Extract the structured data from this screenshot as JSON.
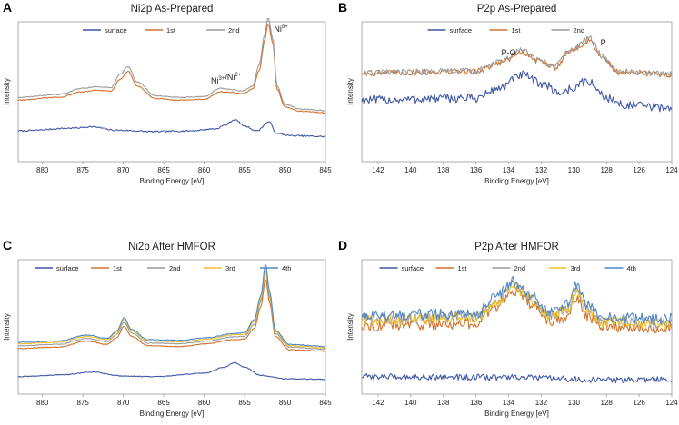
{
  "colors": {
    "surface": "#3f57a6",
    "1st": "#d0712b",
    "2nd": "#9a9a9a",
    "3rd": "#efc02a",
    "4th": "#4f86c6",
    "axis": "#9a9a9a",
    "text": "#222222"
  },
  "chart_data": [
    {
      "panel": "A",
      "type": "line",
      "title": "Ni2p As-Prepared",
      "xlabel": "Binding Energy [eV]",
      "ylabel": "Intensity",
      "xlim": [
        883,
        845
      ],
      "ylim": [
        0,
        10
      ],
      "xticks": [
        880,
        875,
        870,
        865,
        860,
        855,
        850,
        845
      ],
      "legend": [
        "surface",
        "1st",
        "2nd"
      ],
      "annotations": [
        {
          "text": "Ni",
          "sup": "δ+",
          "x": 850.5,
          "y": 9.3
        },
        {
          "text": "Ni",
          "sup": "3+",
          "rest": "/Ni",
          "sup2": "2+",
          "x": 857.3,
          "y": 5.6
        }
      ],
      "series": [
        {
          "name": "surface",
          "noise": 0.05,
          "points": [
            [
              883,
              2.2
            ],
            [
              876,
              2.4
            ],
            [
              874,
              2.5
            ],
            [
              871,
              2.25
            ],
            [
              866,
              2.15
            ],
            [
              862,
              2.2
            ],
            [
              858.5,
              2.35
            ],
            [
              857.5,
              2.6
            ],
            [
              856.2,
              3.0
            ],
            [
              855,
              2.55
            ],
            [
              853.5,
              2.2
            ],
            [
              852,
              2.85
            ],
            [
              851,
              2.0
            ],
            [
              849,
              1.85
            ],
            [
              845,
              1.8
            ]
          ]
        },
        {
          "name": "1st",
          "noise": 0.03,
          "points": [
            [
              883,
              4.4
            ],
            [
              878,
              4.6
            ],
            [
              875,
              5.0
            ],
            [
              873.5,
              5.1
            ],
            [
              871.5,
              5.05
            ],
            [
              870.4,
              5.9
            ],
            [
              869.4,
              6.45
            ],
            [
              868.3,
              5.4
            ],
            [
              866,
              4.5
            ],
            [
              863,
              4.4
            ],
            [
              860,
              4.45
            ],
            [
              858,
              5.0
            ],
            [
              856.6,
              4.95
            ],
            [
              855.2,
              4.85
            ],
            [
              854,
              5.2
            ],
            [
              853.2,
              6.5
            ],
            [
              852.5,
              8.7
            ],
            [
              852.1,
              9.9
            ],
            [
              851.5,
              8.5
            ],
            [
              851,
              5.2
            ],
            [
              850,
              3.9
            ],
            [
              848,
              3.6
            ],
            [
              845,
              3.5
            ]
          ]
        },
        {
          "name": "2nd",
          "noise": 0.03,
          "points": [
            [
              883,
              4.6
            ],
            [
              878,
              4.8
            ],
            [
              875,
              5.25
            ],
            [
              873.5,
              5.35
            ],
            [
              871.5,
              5.3
            ],
            [
              870.4,
              6.25
            ],
            [
              869.4,
              6.8
            ],
            [
              868.3,
              5.7
            ],
            [
              866,
              4.7
            ],
            [
              863,
              4.6
            ],
            [
              860,
              4.65
            ],
            [
              858,
              5.25
            ],
            [
              856.6,
              5.15
            ],
            [
              855.2,
              5.05
            ],
            [
              854,
              5.4
            ],
            [
              853.2,
              6.9
            ],
            [
              852.5,
              9.1
            ],
            [
              852.1,
              10.3
            ],
            [
              851.5,
              8.8
            ],
            [
              851,
              5.4
            ],
            [
              850,
              4.1
            ],
            [
              848,
              3.75
            ],
            [
              845,
              3.65
            ]
          ]
        }
      ]
    },
    {
      "panel": "B",
      "type": "line",
      "title": "P2p As-Prepared",
      "xlabel": "Binding Energy [eV]",
      "ylabel": "Intensity",
      "xlim": [
        143,
        124
      ],
      "ylim": [
        0,
        10
      ],
      "xticks": [
        142,
        140,
        138,
        136,
        134,
        132,
        130,
        128,
        126,
        124
      ],
      "legend": [
        "surface",
        "1st",
        "2nd"
      ],
      "annotations": [
        {
          "text": "P-O",
          "x": 134.0,
          "y": 7.6
        },
        {
          "text": "P",
          "x": 128.2,
          "y": 8.3
        }
      ],
      "series": [
        {
          "name": "surface",
          "noise": 0.32,
          "points": [
            [
              143,
              4.4
            ],
            [
              136,
              4.55
            ],
            [
              134.5,
              5.3
            ],
            [
              133.2,
              6.2
            ],
            [
              132,
              5.6
            ],
            [
              130.8,
              4.9
            ],
            [
              130.2,
              5.2
            ],
            [
              129.2,
              5.75
            ],
            [
              128,
              4.6
            ],
            [
              127,
              4.05
            ],
            [
              124,
              3.85
            ]
          ]
        },
        {
          "name": "1st",
          "noise": 0.22,
          "points": [
            [
              143,
              6.3
            ],
            [
              136,
              6.45
            ],
            [
              134.5,
              7.1
            ],
            [
              133.2,
              7.8
            ],
            [
              132.2,
              7.2
            ],
            [
              131.2,
              6.75
            ],
            [
              130.2,
              7.9
            ],
            [
              129,
              8.65
            ],
            [
              128.3,
              7.5
            ],
            [
              127.3,
              6.4
            ],
            [
              124,
              6.2
            ]
          ]
        },
        {
          "name": "2nd",
          "noise": 0.22,
          "points": [
            [
              143,
              6.35
            ],
            [
              136,
              6.5
            ],
            [
              134.5,
              7.15
            ],
            [
              133.2,
              7.95
            ],
            [
              132.2,
              7.3
            ],
            [
              131.2,
              6.8
            ],
            [
              130.2,
              8.0
            ],
            [
              129,
              8.8
            ],
            [
              128.3,
              7.6
            ],
            [
              127.3,
              6.45
            ],
            [
              124,
              6.25
            ]
          ]
        }
      ]
    },
    {
      "panel": "C",
      "type": "line",
      "title": "Ni2p After HMFOR",
      "xlabel": "Binding Energy [eV]",
      "ylabel": "Intensity",
      "xlim": [
        883,
        845
      ],
      "ylim": [
        0,
        10
      ],
      "xticks": [
        880,
        875,
        870,
        865,
        860,
        855,
        850,
        845
      ],
      "legend": [
        "surface",
        "1st",
        "2nd",
        "3rd",
        "4th"
      ],
      "annotations": [],
      "series": [
        {
          "name": "surface",
          "noise": 0.03,
          "points": [
            [
              883,
              1.3
            ],
            [
              877,
              1.45
            ],
            [
              874,
              1.65
            ],
            [
              870,
              1.35
            ],
            [
              866,
              1.3
            ],
            [
              860,
              1.55
            ],
            [
              857.5,
              2.0
            ],
            [
              856.3,
              2.35
            ],
            [
              855,
              2.0
            ],
            [
              853,
              1.4
            ],
            [
              850,
              1.15
            ],
            [
              845,
              1.1
            ]
          ]
        },
        {
          "name": "1st",
          "noise": 0.03,
          "points": [
            [
              883,
              3.4
            ],
            [
              878,
              3.5
            ],
            [
              874.5,
              3.95
            ],
            [
              872,
              3.7
            ],
            [
              870.8,
              4.2
            ],
            [
              869.9,
              5.05
            ],
            [
              869,
              4.3
            ],
            [
              867,
              3.6
            ],
            [
              863,
              3.55
            ],
            [
              859.5,
              3.75
            ],
            [
              856.6,
              4.05
            ],
            [
              855,
              4.1
            ],
            [
              853.8,
              4.9
            ],
            [
              853,
              6.5
            ],
            [
              852.4,
              8.6
            ],
            [
              851.9,
              6.8
            ],
            [
              851.2,
              4.3
            ],
            [
              849.5,
              3.3
            ],
            [
              845,
              3.2
            ]
          ]
        },
        {
          "name": "2nd",
          "noise": 0.03,
          "points": [
            [
              883,
              3.6
            ],
            [
              878,
              3.7
            ],
            [
              874.5,
              4.15
            ],
            [
              872,
              3.9
            ],
            [
              870.8,
              4.45
            ],
            [
              869.9,
              5.35
            ],
            [
              869,
              4.55
            ],
            [
              867,
              3.8
            ],
            [
              863,
              3.75
            ],
            [
              859.5,
              3.95
            ],
            [
              856.6,
              4.25
            ],
            [
              855,
              4.3
            ],
            [
              853.8,
              5.2
            ],
            [
              853,
              6.9
            ],
            [
              852.4,
              9.2
            ],
            [
              851.9,
              7.2
            ],
            [
              851.2,
              4.5
            ],
            [
              849.5,
              3.5
            ],
            [
              845,
              3.35
            ]
          ]
        },
        {
          "name": "3rd",
          "noise": 0.03,
          "points": [
            [
              883,
              3.75
            ],
            [
              878,
              3.85
            ],
            [
              874.5,
              4.3
            ],
            [
              872,
              4.05
            ],
            [
              870.8,
              4.6
            ],
            [
              869.9,
              5.55
            ],
            [
              869,
              4.7
            ],
            [
              867,
              3.95
            ],
            [
              863,
              3.9
            ],
            [
              859.5,
              4.1
            ],
            [
              856.6,
              4.4
            ],
            [
              855,
              4.45
            ],
            [
              853.8,
              5.4
            ],
            [
              853,
              7.1
            ],
            [
              852.4,
              9.45
            ],
            [
              851.9,
              7.4
            ],
            [
              851.2,
              4.65
            ],
            [
              849.5,
              3.6
            ],
            [
              845,
              3.45
            ]
          ]
        },
        {
          "name": "4th",
          "noise": 0.03,
          "points": [
            [
              883,
              3.85
            ],
            [
              878,
              3.95
            ],
            [
              874.5,
              4.4
            ],
            [
              872,
              4.15
            ],
            [
              870.8,
              4.7
            ],
            [
              869.9,
              5.7
            ],
            [
              869,
              4.8
            ],
            [
              867,
              4.05
            ],
            [
              863,
              4.0
            ],
            [
              859.5,
              4.2
            ],
            [
              856.6,
              4.5
            ],
            [
              855,
              4.55
            ],
            [
              853.8,
              5.55
            ],
            [
              853,
              7.3
            ],
            [
              852.4,
              9.7
            ],
            [
              851.9,
              7.6
            ],
            [
              851.2,
              4.75
            ],
            [
              849.5,
              3.7
            ],
            [
              845,
              3.55
            ]
          ]
        }
      ]
    },
    {
      "panel": "D",
      "type": "line",
      "title": "P2p After HMFOR",
      "xlabel": "Binding Energy [eV]",
      "ylabel": "Intensity",
      "xlim": [
        143,
        124
      ],
      "ylim": [
        0,
        10
      ],
      "xticks": [
        142,
        140,
        138,
        136,
        134,
        132,
        130,
        128,
        126,
        124
      ],
      "legend": [
        "surface",
        "1st",
        "2nd",
        "3rd",
        "4th"
      ],
      "annotations": [],
      "series": [
        {
          "name": "surface",
          "noise": 0.22,
          "points": [
            [
              143,
              1.3
            ],
            [
              134,
              1.25
            ],
            [
              128,
              1.05
            ],
            [
              124,
              1.1
            ]
          ]
        },
        {
          "name": "1st",
          "noise": 0.4,
          "points": [
            [
              143,
              5.1
            ],
            [
              136,
              5.25
            ],
            [
              134.8,
              6.4
            ],
            [
              133.7,
              7.75
            ],
            [
              132.6,
              6.7
            ],
            [
              131.5,
              5.4
            ],
            [
              130.5,
              5.7
            ],
            [
              129.8,
              7.0
            ],
            [
              129.2,
              5.8
            ],
            [
              128.2,
              5.0
            ],
            [
              124,
              4.9
            ]
          ]
        },
        {
          "name": "2nd",
          "noise": 0.4,
          "points": [
            [
              143,
              5.6
            ],
            [
              136,
              5.75
            ],
            [
              134.8,
              6.9
            ],
            [
              133.7,
              8.15
            ],
            [
              132.6,
              7.1
            ],
            [
              131.5,
              5.9
            ],
            [
              130.5,
              6.3
            ],
            [
              129.8,
              7.65
            ],
            [
              129.2,
              6.3
            ],
            [
              128.2,
              5.45
            ],
            [
              124,
              5.3
            ]
          ]
        },
        {
          "name": "3rd",
          "noise": 0.4,
          "points": [
            [
              143,
              5.5
            ],
            [
              136,
              5.65
            ],
            [
              134.8,
              6.8
            ],
            [
              133.7,
              8.05
            ],
            [
              132.6,
              7.0
            ],
            [
              131.5,
              5.8
            ],
            [
              130.5,
              6.2
            ],
            [
              129.8,
              7.5
            ],
            [
              129.2,
              6.2
            ],
            [
              128.2,
              5.35
            ],
            [
              124,
              5.2
            ]
          ]
        },
        {
          "name": "4th",
          "noise": 0.4,
          "points": [
            [
              143,
              5.85
            ],
            [
              136,
              6.0
            ],
            [
              134.8,
              7.2
            ],
            [
              133.7,
              8.35
            ],
            [
              132.6,
              7.35
            ],
            [
              131.5,
              6.1
            ],
            [
              130.5,
              6.6
            ],
            [
              129.8,
              8.2
            ],
            [
              129.2,
              6.6
            ],
            [
              128.2,
              5.7
            ],
            [
              124,
              5.6
            ]
          ]
        }
      ]
    }
  ]
}
